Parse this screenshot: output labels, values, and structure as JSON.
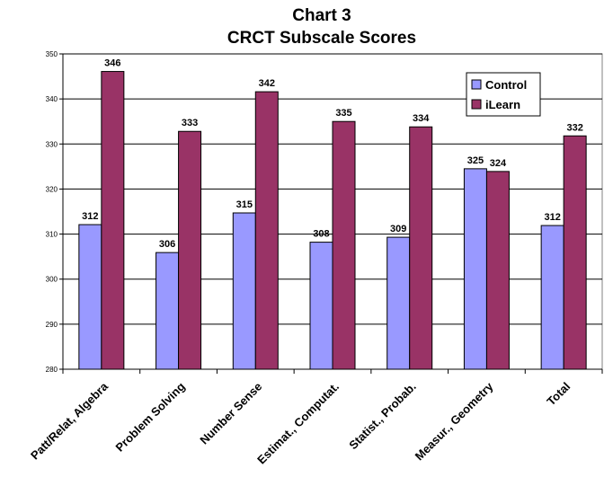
{
  "chart_data": {
    "type": "bar",
    "title": "Chart 3",
    "subtitle": "CRCT Subscale Scores",
    "xlabel": "",
    "ylabel": "",
    "categories": [
      "Patt/Relat, Algebra",
      "Problem Solving",
      "Number Sense",
      "Estimat., Computat.",
      "Statist., Probab.",
      "Measur., Geometry",
      "Total"
    ],
    "series": [
      {
        "name": "Control",
        "values": [
          312,
          306,
          315,
          308,
          309,
          325,
          312
        ],
        "color": "#9999ff"
      },
      {
        "name": "iLearn",
        "values": [
          346,
          333,
          342,
          335,
          334,
          324,
          332
        ],
        "color": "#993366"
      }
    ],
    "bar_heights": [
      [
        312.1,
        305.9,
        314.7,
        308.2,
        309.3,
        324.5,
        311.9
      ],
      [
        346.1,
        332.8,
        341.6,
        335.0,
        333.8,
        323.9,
        331.8
      ]
    ],
    "ylim": [
      280,
      350
    ],
    "yticks": [
      280,
      290,
      300,
      310,
      320,
      330,
      340,
      350
    ],
    "grid": true,
    "legend_position": "top-right",
    "plot_background": "#ffffff",
    "gridline_color": "#000000"
  }
}
